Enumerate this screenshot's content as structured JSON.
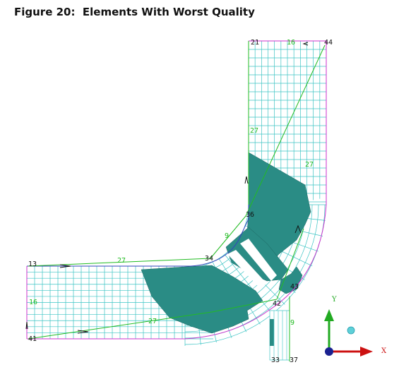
{
  "title": "Figure 20:  Elements With Worst Quality",
  "node_labels": [
    "21",
    "44",
    "13",
    "41",
    "34",
    "36",
    "43",
    "42",
    "33",
    "37"
  ],
  "edge_labels": [
    "16",
    "27",
    "27",
    "27",
    "9",
    "16",
    "27",
    "9"
  ],
  "axes": {
    "y_label": "Y",
    "x_label": "X"
  },
  "colors": {
    "mesh_line": "#3cc4c4",
    "boundary": "#cc33cc",
    "worst_elements": "#2a8c85",
    "edge_marker": "#22bb22",
    "axis_y": "#22aa22",
    "axis_x": "#cc1111"
  }
}
